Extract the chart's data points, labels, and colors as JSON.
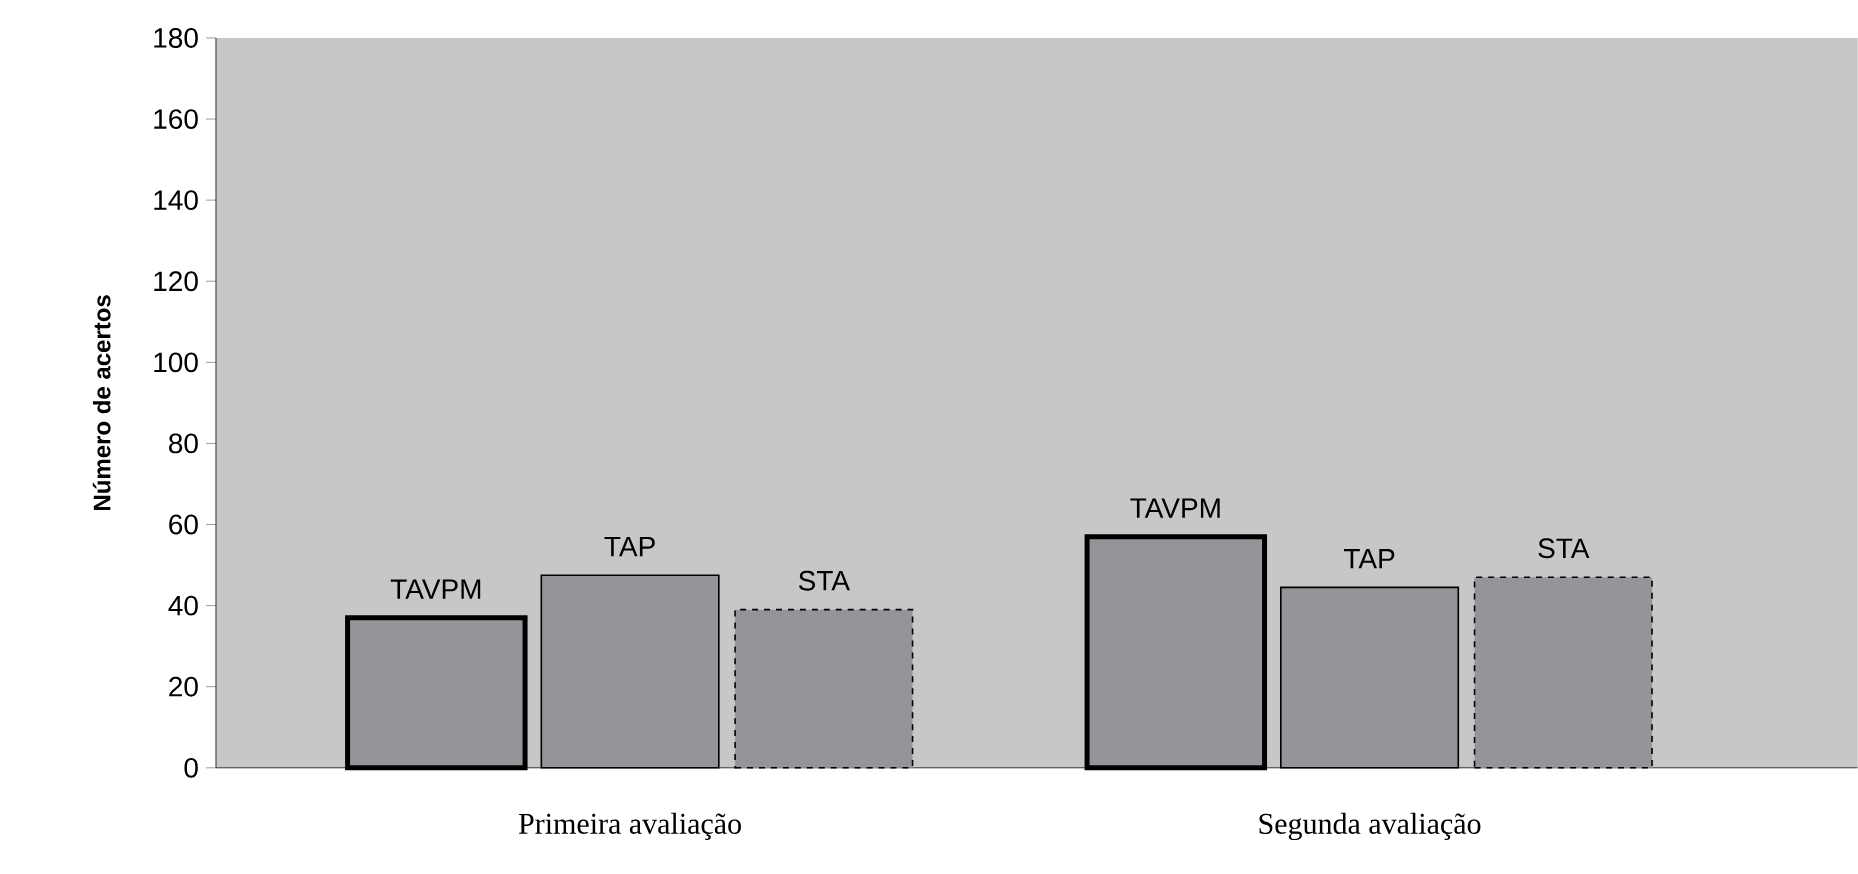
{
  "chart_data": {
    "type": "bar",
    "ylabel": "Número de acertos",
    "categories": [
      "Primeira avaliação",
      "Segunda avaliação"
    ],
    "series": [
      {
        "name": "TAVPM",
        "color": "#939598",
        "values": [
          37,
          57
        ],
        "line_style": "solid"
      },
      {
        "name": "TAP",
        "color": "#939598",
        "values": [
          47.5,
          44.5
        ],
        "line_style": "solid"
      },
      {
        "name": "STA",
        "color": "#939598",
        "values": [
          39,
          47
        ],
        "line_style": "dashed"
      }
    ],
    "ylim": [
      0,
      180
    ],
    "yticks": [
      0,
      20,
      40,
      60,
      80,
      100,
      120,
      140,
      160,
      180
    ],
    "grid": false
  }
}
